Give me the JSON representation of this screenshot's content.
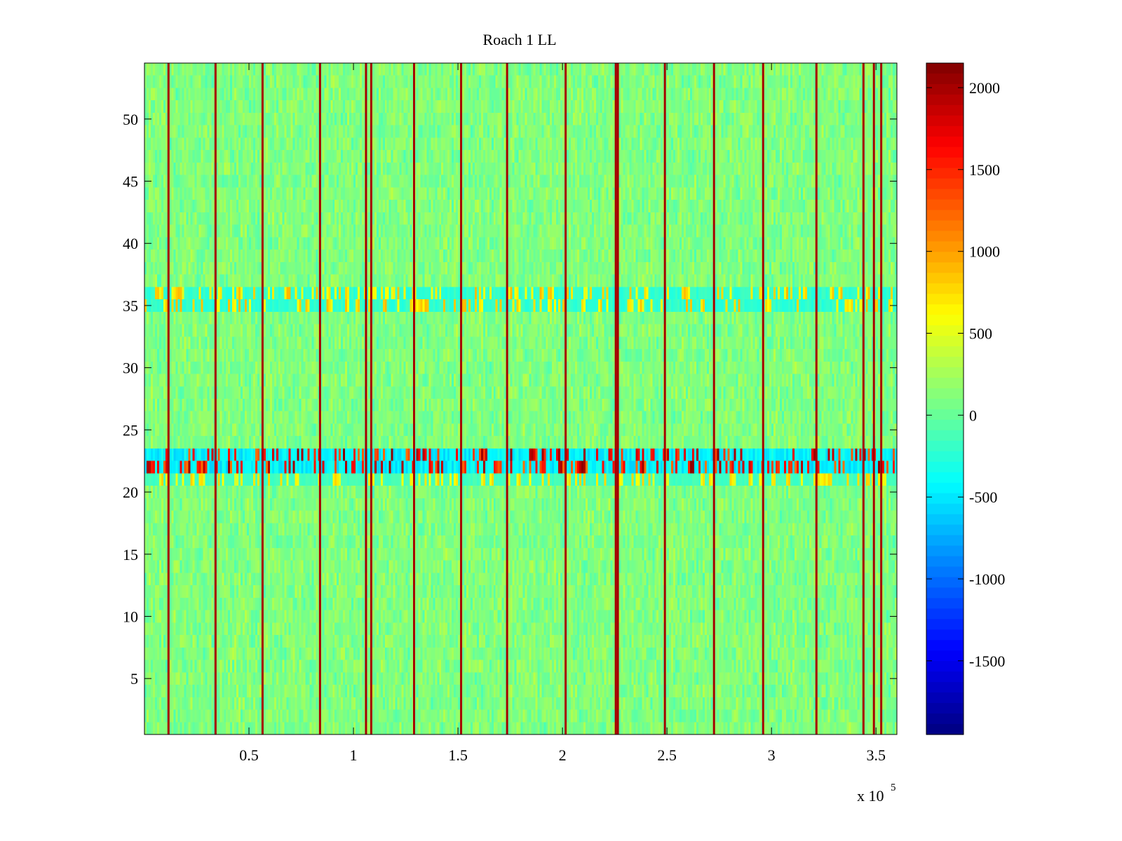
{
  "chart_data": {
    "type": "heatmap",
    "title": "Roach 1 LL",
    "xlabel": "",
    "ylabel": "",
    "x_exponent_label": {
      "base": "x 10",
      "exponent": "5"
    },
    "xlim": [
      0,
      360000
    ],
    "ylim": [
      0.5,
      54.5
    ],
    "rows": 54,
    "columns": 360,
    "x_ticks": [
      {
        "value": 50000,
        "label": "0.5"
      },
      {
        "value": 100000,
        "label": "1"
      },
      {
        "value": 150000,
        "label": "1.5"
      },
      {
        "value": 200000,
        "label": "2"
      },
      {
        "value": 250000,
        "label": "2.5"
      },
      {
        "value": 300000,
        "label": "3"
      },
      {
        "value": 350000,
        "label": "3.5"
      }
    ],
    "y_ticks": [
      {
        "value": 5,
        "label": "5"
      },
      {
        "value": 10,
        "label": "10"
      },
      {
        "value": 15,
        "label": "15"
      },
      {
        "value": 20,
        "label": "20"
      },
      {
        "value": 25,
        "label": "25"
      },
      {
        "value": 30,
        "label": "30"
      },
      {
        "value": 35,
        "label": "35"
      },
      {
        "value": 40,
        "label": "40"
      },
      {
        "value": 45,
        "label": "45"
      },
      {
        "value": 50,
        "label": "50"
      }
    ],
    "colorbar": {
      "colormap": "jet",
      "range": [
        -1950,
        2150
      ],
      "ticks": [
        {
          "value": 2000,
          "label": "2000"
        },
        {
          "value": 1500,
          "label": "1500"
        },
        {
          "value": 1000,
          "label": "1000"
        },
        {
          "value": 500,
          "label": "500"
        },
        {
          "value": 0,
          "label": "0"
        },
        {
          "value": -500,
          "label": "-500"
        },
        {
          "value": -1000,
          "label": "-1000"
        },
        {
          "value": -1500,
          "label": "-1500"
        }
      ]
    },
    "background_value_range": [
      -400,
      350
    ],
    "high_value_stripes_x": [
      11500,
      34000,
      56500,
      84000,
      106000,
      108500,
      129000,
      151500,
      173500,
      201500,
      225500,
      226500,
      249000,
      272500,
      296000,
      321500,
      344000,
      349000,
      352500
    ],
    "stripe_value": 2000,
    "anomalous_rows": [
      {
        "row": 22,
        "value_range": [
          -600,
          2100
        ]
      },
      {
        "row": 23,
        "value_range": [
          -600,
          2100
        ]
      },
      {
        "row": 21,
        "value_range": [
          -200,
          800
        ]
      },
      {
        "row": 35,
        "value_range": [
          -300,
          900
        ]
      },
      {
        "row": 36,
        "value_range": [
          -300,
          900
        ]
      }
    ]
  }
}
